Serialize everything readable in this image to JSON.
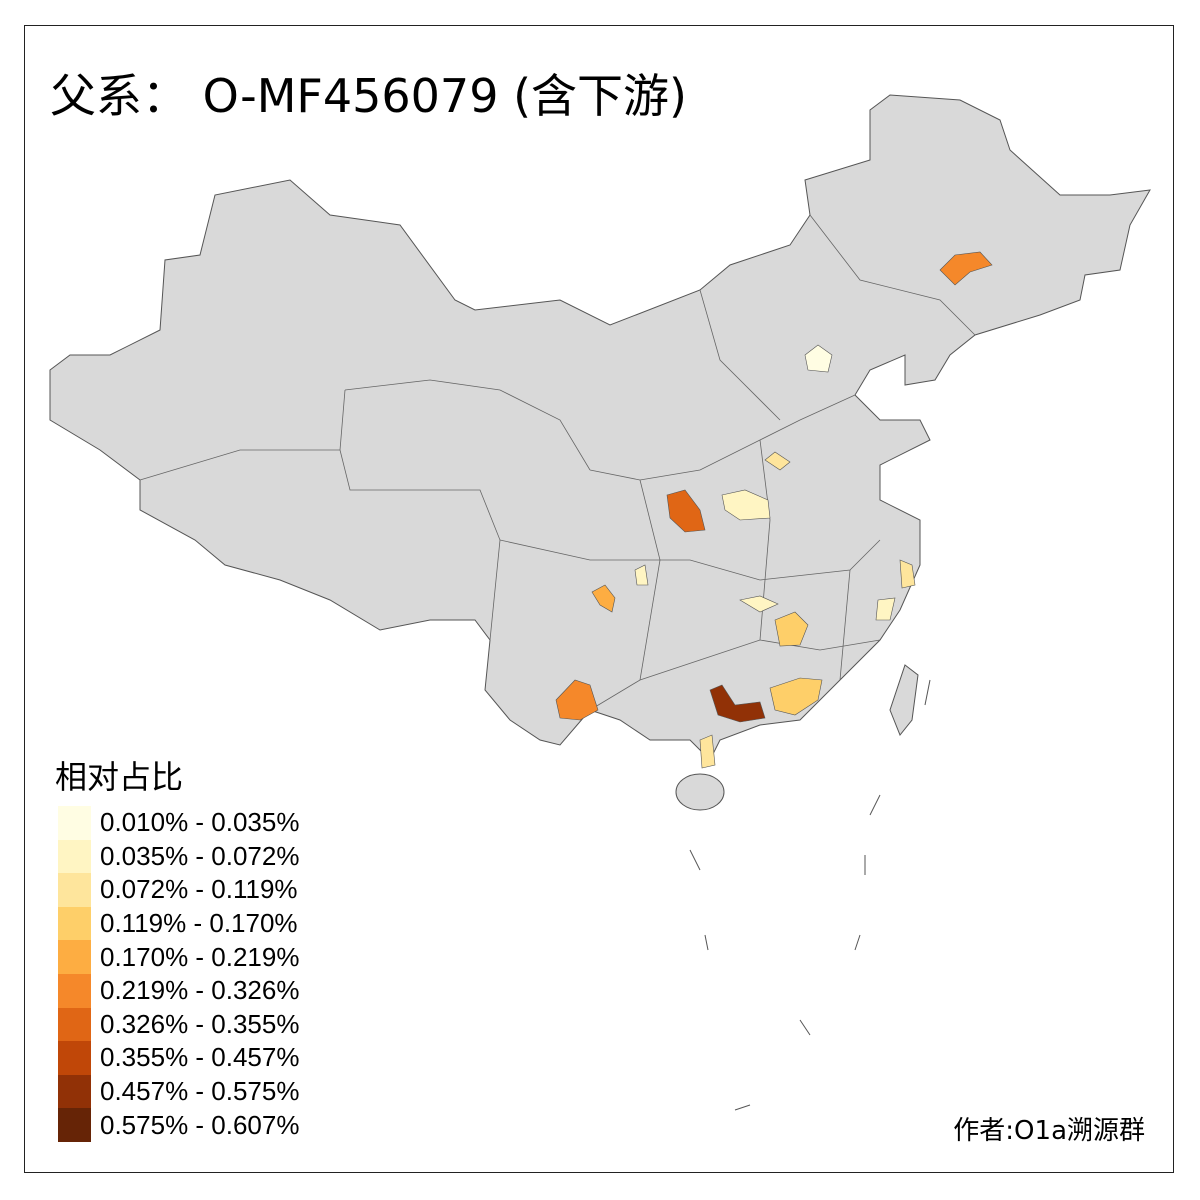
{
  "title": "父系： O-MF456079 (含下游)",
  "legend": {
    "title": "相对占比",
    "items": [
      {
        "label": "0.010% - 0.035%",
        "color": "#FFFDE3"
      },
      {
        "label": "0.035% - 0.072%",
        "color": "#FFF5C3"
      },
      {
        "label": "0.072% - 0.119%",
        "color": "#FEE59C"
      },
      {
        "label": "0.119% - 0.170%",
        "color": "#FECF69"
      },
      {
        "label": "0.170% - 0.219%",
        "color": "#FDAD42"
      },
      {
        "label": "0.219% - 0.326%",
        "color": "#F5882A"
      },
      {
        "label": "0.326% - 0.355%",
        "color": "#E06615"
      },
      {
        "label": "0.355% - 0.457%",
        "color": "#C04708"
      },
      {
        "label": "0.457% - 0.575%",
        "color": "#913106"
      },
      {
        "label": "0.575% - 0.607%",
        "color": "#662406"
      }
    ]
  },
  "map": {
    "base_color": "#D9D9D9",
    "border_color": "#555555"
  },
  "author": "作者:O1a溯源群"
}
